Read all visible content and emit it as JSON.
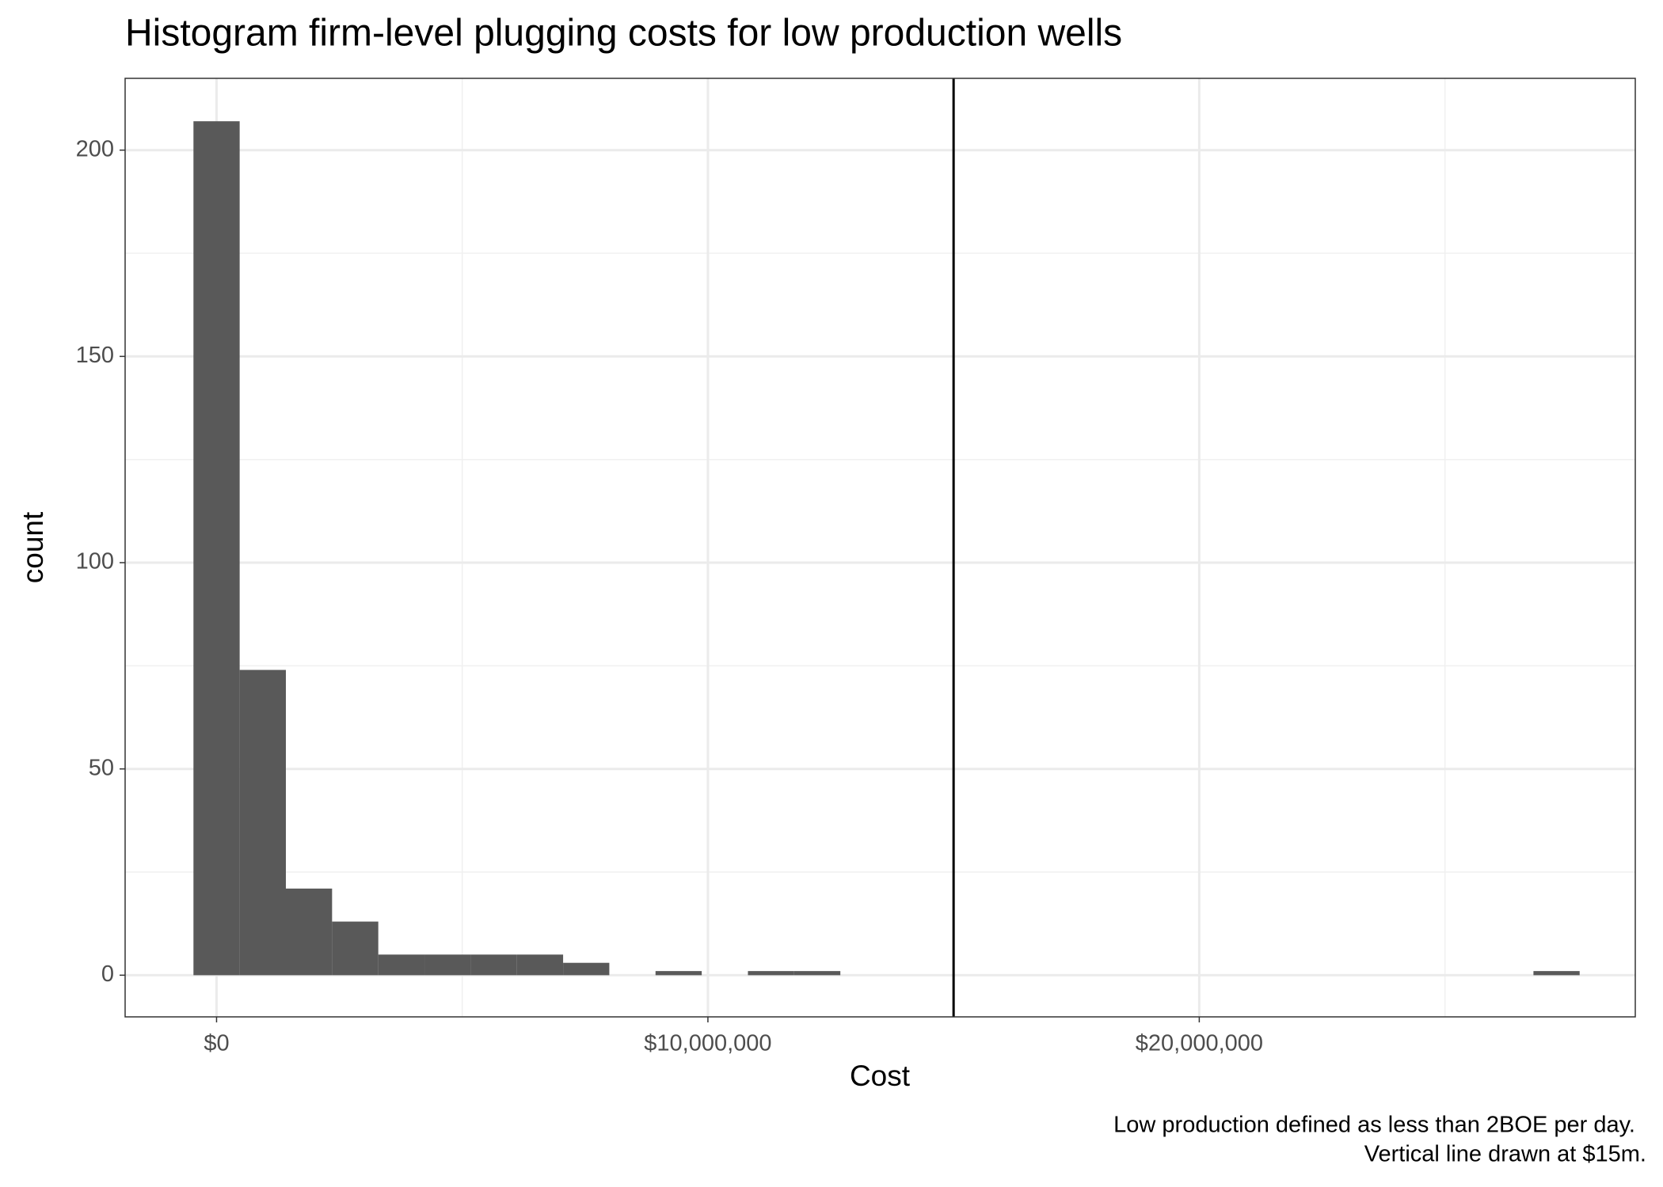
{
  "chart_data": {
    "type": "histogram",
    "title": "Histogram firm-level plugging costs for low production wells",
    "x_label": "Cost",
    "y_label": "count",
    "caption": [
      "Low production defined as less than 2BOE per day.",
      "Vertical line drawn at $15m."
    ],
    "bins": [
      -470200,
      470200,
      1410600,
      2351000,
      3291400,
      4231800,
      5172200,
      6112600,
      7053000,
      7993400,
      8933800,
      9874200,
      10814600,
      11755000,
      12695400,
      13635800,
      14576200,
      15516600,
      16457000,
      17397400,
      18337800,
      19278200,
      20218600,
      21159000,
      22099400,
      23039800,
      23980200,
      24920600,
      25861000,
      26801400,
      27741800
    ],
    "values": [
      207,
      74,
      21,
      13,
      5,
      5,
      5,
      5,
      3,
      0,
      1,
      0,
      1,
      1,
      0,
      0,
      0,
      0,
      0,
      0,
      0,
      0,
      0,
      0,
      0,
      0,
      0,
      0,
      0,
      1
    ],
    "color": "#595959",
    "vline": 15000000,
    "xlim": [
      -1861000,
      28874000
    ],
    "ylim": [
      -10.1,
      217.4
    ],
    "xticks": [
      {
        "value": 0,
        "label": "$0"
      },
      {
        "value": 10000000,
        "label": "$10,000,000"
      },
      {
        "value": 20000000,
        "label": "$20,000,000"
      }
    ],
    "yticks": [
      0,
      50,
      100,
      150,
      200
    ],
    "x_minor_grid": [
      5000000,
      15000000,
      25000000
    ],
    "y_minor_grid": [
      25,
      75,
      125,
      175
    ],
    "grid": true
  }
}
